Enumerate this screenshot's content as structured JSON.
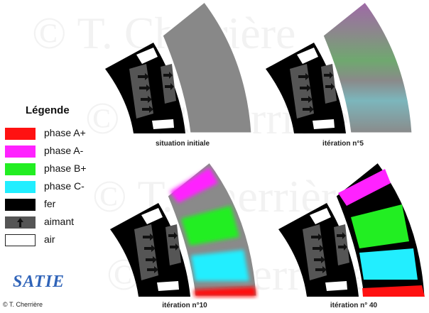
{
  "legend": {
    "title": "Légende",
    "items": [
      {
        "label": "phase A+",
        "color": "#ff1111"
      },
      {
        "label": "phase A-",
        "color": "#ff22ff"
      },
      {
        "label": "phase B+",
        "color": "#22ee22"
      },
      {
        "label": "phase C-",
        "color": "#22eeff"
      },
      {
        "label": "fer",
        "color": "#000000"
      },
      {
        "label": "aimant",
        "color": "#555555",
        "icon": "arrow-up-icon"
      },
      {
        "label": "air",
        "color": "#ffffff"
      }
    ]
  },
  "panels": [
    {
      "caption": "situation initiale",
      "state": "initial"
    },
    {
      "caption": "itération n°5",
      "state": "iteration5"
    },
    {
      "caption": "itération n°10",
      "state": "iteration10"
    },
    {
      "caption": "itération n° 40",
      "state": "iteration40"
    }
  ],
  "watermark": "© T. Cherrière",
  "logo": "SATIE",
  "copyright": "© T. Cherrière",
  "colors": {
    "iron": "#000000",
    "magnet": "#555555",
    "air": "#ffffff",
    "uniform_gray": "#888888"
  }
}
